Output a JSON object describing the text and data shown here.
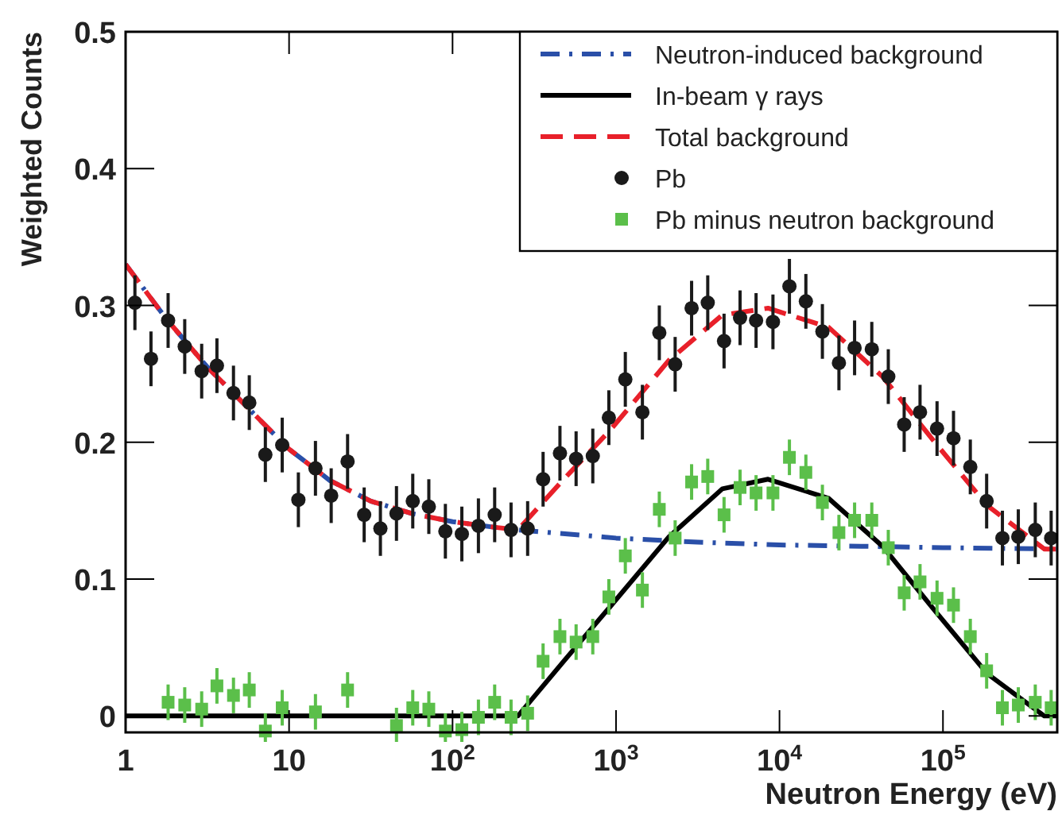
{
  "chart_data": {
    "type": "line",
    "xlabel": "Neutron Energy (eV)",
    "ylabel": "Weighted Counts",
    "log": "x",
    "xlim": [
      1,
      500000
    ],
    "ylim": [
      -0.012,
      0.5
    ],
    "xticks": [
      {
        "value": 1,
        "label": "1"
      },
      {
        "value": 10,
        "label": "10"
      },
      {
        "value": 100,
        "label": "10$^{2}$"
      },
      {
        "value": 1000,
        "label": "10$^{3}$"
      },
      {
        "value": 10000,
        "label": "10$^{4}$"
      },
      {
        "value": 100000,
        "label": "10$^{5}$"
      }
    ],
    "yticks": [
      0,
      0.1,
      0.2,
      0.3,
      0.4,
      0.5
    ],
    "grid": false,
    "legend": "top right",
    "series": [
      {
        "name": "Neutron-induced background",
        "line_style": "dashdot",
        "marker": "none",
        "color": "#2a4fa8",
        "x": [
          1,
          1.78,
          3.16,
          5.62,
          10,
          17.8,
          31.6,
          56.2,
          100,
          178,
          251,
          1000,
          3160,
          10000,
          31600,
          100000,
          500000
        ],
        "values": [
          0.33,
          0.29,
          0.255,
          0.225,
          0.195,
          0.172,
          0.157,
          0.148,
          0.142,
          0.138,
          0.136,
          0.13,
          0.127,
          0.125,
          0.124,
          0.123,
          0.122
        ]
      },
      {
        "name": "In-beam γ rays",
        "line_style": "solid",
        "marker": "none",
        "color": "#000000",
        "x": [
          1,
          251,
          479,
          923,
          2110,
          4470,
          8510,
          20000,
          42700,
          89100,
          186000,
          417000,
          500000
        ],
        "values": [
          0,
          0,
          0.04,
          0.08,
          0.131,
          0.166,
          0.173,
          0.159,
          0.124,
          0.077,
          0.031,
          0,
          0
        ]
      },
      {
        "name": "Total background",
        "line_style": "dashed",
        "marker": "none",
        "color": "#e8202a",
        "x": [
          1,
          1.78,
          3.16,
          5.62,
          10,
          17.8,
          31.6,
          56.2,
          100,
          178,
          251,
          479,
          923,
          2110,
          4470,
          8510,
          20000,
          42700,
          89100,
          186000,
          417000,
          500000
        ],
        "values": [
          0.33,
          0.29,
          0.255,
          0.225,
          0.195,
          0.172,
          0.157,
          0.148,
          0.142,
          0.138,
          0.136,
          0.173,
          0.209,
          0.26,
          0.293,
          0.298,
          0.284,
          0.248,
          0.2,
          0.154,
          0.122,
          0.122
        ]
      },
      {
        "name": "Pb",
        "type": "scatter",
        "marker": "circle",
        "color": "#1a1a1a",
        "x": [
          1.14,
          1.43,
          1.82,
          2.3,
          2.92,
          3.62,
          4.57,
          5.71,
          7.16,
          9.08,
          11.4,
          14.5,
          18.1,
          22.8,
          28.8,
          36.2,
          45.4,
          57.1,
          71.6,
          90.4,
          114,
          144,
          181,
          228,
          288,
          358,
          454,
          570,
          721,
          904,
          1140,
          1450,
          1840,
          2300,
          2900,
          3640,
          4580,
          5740,
          7190,
          9120,
          11500,
          14500,
          18300,
          23100,
          28800,
          36700,
          46300,
          57900,
          72400,
          92000,
          116000,
          147000,
          185000,
          231000,
          289000,
          367000,
          459000
        ],
        "values": [
          0.302,
          0.261,
          0.289,
          0.27,
          0.252,
          0.256,
          0.236,
          0.229,
          0.191,
          0.198,
          0.158,
          0.181,
          0.161,
          0.186,
          0.147,
          0.137,
          0.148,
          0.157,
          0.153,
          0.135,
          0.133,
          0.139,
          0.147,
          0.136,
          0.137,
          0.173,
          0.192,
          0.188,
          0.19,
          0.218,
          0.246,
          0.222,
          0.28,
          0.257,
          0.298,
          0.302,
          0.274,
          0.291,
          0.289,
          0.288,
          0.314,
          0.303,
          0.281,
          0.258,
          0.269,
          0.268,
          0.248,
          0.213,
          0.222,
          0.21,
          0.203,
          0.182,
          0.157,
          0.13,
          0.131,
          0.136,
          0.13
        ],
        "errors": [
          0.02,
          0.02,
          0.02,
          0.02,
          0.02,
          0.02,
          0.02,
          0.02,
          0.02,
          0.02,
          0.02,
          0.02,
          0.02,
          0.02,
          0.02,
          0.02,
          0.02,
          0.02,
          0.02,
          0.02,
          0.02,
          0.02,
          0.02,
          0.02,
          0.02,
          0.02,
          0.02,
          0.02,
          0.02,
          0.02,
          0.02,
          0.02,
          0.02,
          0.02,
          0.02,
          0.02,
          0.02,
          0.02,
          0.02,
          0.02,
          0.02,
          0.02,
          0.02,
          0.02,
          0.02,
          0.02,
          0.02,
          0.02,
          0.02,
          0.02,
          0.02,
          0.02,
          0.02,
          0.02,
          0.02,
          0.02,
          0.02
        ]
      },
      {
        "name": "Pb minus neutron background",
        "type": "scatter",
        "marker": "square",
        "color": "#5bbf4a",
        "x": [
          1.82,
          2.3,
          2.92,
          3.62,
          4.57,
          5.71,
          7.16,
          9.08,
          14.5,
          22.8,
          45.4,
          57.1,
          71.6,
          90.4,
          114,
          144,
          181,
          228,
          288,
          358,
          454,
          570,
          721,
          904,
          1140,
          1450,
          1840,
          2300,
          2900,
          3640,
          4580,
          5740,
          7190,
          9120,
          11500,
          14500,
          18300,
          23100,
          28800,
          36700,
          46300,
          57900,
          72400,
          92000,
          116000,
          147000,
          185000,
          231000,
          289000,
          367000,
          459000
        ],
        "values": [
          0.01,
          0.008,
          0.005,
          0.022,
          0.015,
          0.019,
          -0.011,
          0.006,
          0.003,
          0.019,
          -0.007,
          0.006,
          0.005,
          -0.011,
          -0.01,
          -0.001,
          0.01,
          -0.001,
          0.002,
          0.04,
          0.058,
          0.054,
          0.058,
          0.087,
          0.117,
          0.092,
          0.151,
          0.13,
          0.171,
          0.175,
          0.147,
          0.167,
          0.163,
          0.163,
          0.189,
          0.178,
          0.156,
          0.134,
          0.143,
          0.143,
          0.123,
          0.09,
          0.098,
          0.086,
          0.081,
          0.058,
          0.033,
          0.006,
          0.008,
          0.01,
          0.006
        ],
        "errors": [
          0.013,
          0.013,
          0.013,
          0.013,
          0.013,
          0.013,
          0.013,
          0.013,
          0.013,
          0.013,
          0.013,
          0.013,
          0.013,
          0.013,
          0.013,
          0.013,
          0.013,
          0.013,
          0.013,
          0.013,
          0.013,
          0.013,
          0.013,
          0.013,
          0.013,
          0.013,
          0.013,
          0.013,
          0.013,
          0.013,
          0.013,
          0.013,
          0.013,
          0.013,
          0.013,
          0.013,
          0.013,
          0.013,
          0.013,
          0.013,
          0.013,
          0.013,
          0.013,
          0.013,
          0.013,
          0.013,
          0.013,
          0.013,
          0.013,
          0.013,
          0.013
        ]
      }
    ]
  }
}
